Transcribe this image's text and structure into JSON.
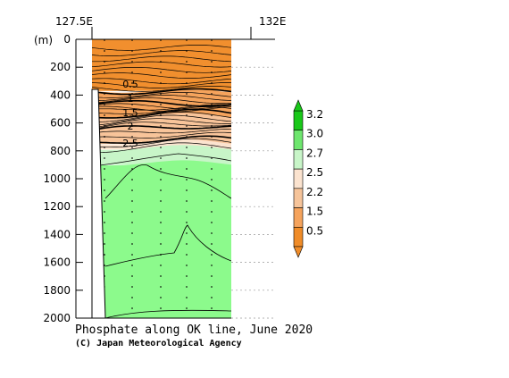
{
  "chart_data": {
    "type": "contour-section",
    "title": "Phosphate along OK line, June 2020",
    "credit": "(C) Japan Meteorological Agency",
    "ylabel": "(m)",
    "ylim": [
      0,
      2000
    ],
    "y_ticks": [
      0,
      200,
      400,
      600,
      800,
      1000,
      1200,
      1400,
      1600,
      1800,
      2000
    ],
    "x_labels": [
      "127.5E",
      "132E"
    ],
    "contour_labels": [
      "0.5",
      "1",
      "1.5",
      "2",
      "2.5"
    ],
    "colorbar": {
      "ticks": [
        "3.2",
        "3.0",
        "2.7",
        "2.5",
        "2.2",
        "1.5",
        "0.5"
      ],
      "colors": [
        "#19c819",
        "#6ee66e",
        "#c8f5c8",
        "#fbe3cf",
        "#f6c49a",
        "#f5a35c",
        "#f08c28"
      ]
    },
    "layers": [
      {
        "from": 0,
        "to": 370,
        "color": "#f18f2e"
      },
      {
        "from": 370,
        "to": 560,
        "color": "#f5a35c"
      },
      {
        "from": 560,
        "to": 750,
        "color": "#f8c49a"
      },
      {
        "from": 750,
        "to": 790,
        "color": "#fbe3cf"
      },
      {
        "from": 790,
        "to": 900,
        "color": "#c8f5c8"
      },
      {
        "from": 900,
        "to": 2000,
        "color": "#8cfa8c"
      }
    ]
  }
}
